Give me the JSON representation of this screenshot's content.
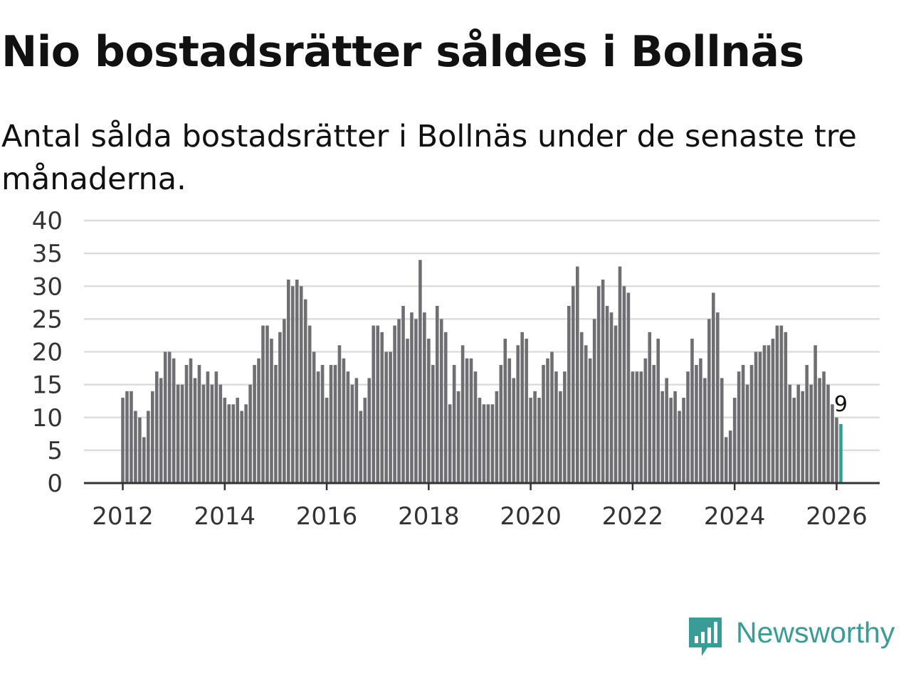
{
  "title": "Nio bostadsrätter såldes i Bollnäs",
  "subtitle": "Antal sålda bostadsrätter i Bollnäs under de senaste tre månaderna.",
  "brand": {
    "name": "Newsworthy",
    "color": "#3a9c96",
    "icon": "newsworthy-logo-icon"
  },
  "colors": {
    "bar": "#6f6e73",
    "highlight": "#2aa198",
    "grid": "#dddddd",
    "axis": "#333333"
  },
  "chart_data": {
    "type": "bar",
    "title": "Nio bostadsrätter såldes i Bollnäs",
    "xlabel": "",
    "ylabel": "",
    "ylim": [
      0,
      40
    ],
    "yticks": [
      0,
      5,
      10,
      15,
      20,
      25,
      30,
      35,
      40
    ],
    "xticks": [
      "2012",
      "2014",
      "2016",
      "2018",
      "2020",
      "2022",
      "2024",
      "2026"
    ],
    "start": "2012-01",
    "end": "2026-02",
    "grid": true,
    "series": [
      {
        "name": "Sålda bostadsrätter",
        "values": [
          13,
          14,
          14,
          11,
          10,
          7,
          11,
          14,
          17,
          16,
          20,
          20,
          19,
          15,
          15,
          18,
          19,
          16,
          18,
          15,
          17,
          15,
          17,
          15,
          13,
          12,
          12,
          13,
          11,
          12,
          15,
          18,
          19,
          24,
          24,
          22,
          18,
          23,
          25,
          31,
          30,
          31,
          30,
          28,
          24,
          20,
          17,
          18,
          13,
          18,
          18,
          21,
          19,
          17,
          15,
          16,
          11,
          13,
          16,
          24,
          24,
          23,
          20,
          20,
          24,
          25,
          27,
          22,
          26,
          25,
          34,
          26,
          22,
          18,
          27,
          25,
          23,
          12,
          18,
          14,
          21,
          19,
          19,
          17,
          13,
          12,
          12,
          12,
          14,
          18,
          22,
          19,
          16,
          21,
          23,
          22,
          13,
          14,
          13,
          18,
          19,
          20,
          17,
          14,
          17,
          27,
          30,
          33,
          23,
          21,
          19,
          25,
          30,
          31,
          27,
          26,
          24,
          33,
          30,
          29,
          17,
          17,
          17,
          19,
          23,
          18,
          22,
          14,
          16,
          13,
          14,
          11,
          13,
          17,
          22,
          18,
          19,
          16,
          25,
          29,
          26,
          16,
          7,
          8,
          13,
          17,
          18,
          15,
          18,
          20,
          20,
          21,
          21,
          22,
          24,
          24,
          23,
          15,
          13,
          15,
          14,
          18,
          15,
          21,
          16,
          17,
          15,
          12,
          10,
          9
        ]
      }
    ],
    "highlight": {
      "index": 169,
      "value": 9,
      "label": "9"
    }
  }
}
